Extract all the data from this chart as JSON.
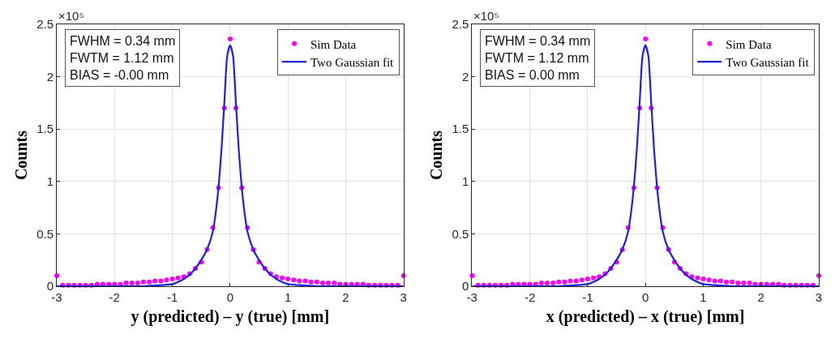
{
  "chart_data": [
    {
      "type": "scatter",
      "xlabel": "y (predicted) – y (true) [mm]",
      "ylabel": "Counts",
      "xlim": [
        -3,
        3
      ],
      "xticks": [
        -3,
        -2,
        -1,
        0,
        1,
        2,
        3
      ],
      "ylim": [
        0,
        2.5
      ],
      "yticks": [
        0,
        0.5,
        1,
        1.5,
        2,
        2.5
      ],
      "grid": true,
      "legend": "top right",
      "annotations": [
        "×10⁵",
        "FWHM = 0.34 mm",
        "FWTM = 1.12 mm",
        "BIAS = -0.00 mm"
      ],
      "series": [
        {
          "name": "Sim Data",
          "marker": "circle",
          "color": "#ff00ff",
          "x": [
            -3,
            -2.9,
            -2.8,
            -2.7,
            -2.6,
            -2.5,
            -2.4,
            -2.3,
            -2.2,
            -2.1,
            -2,
            -1.9,
            -1.8,
            -1.7,
            -1.6,
            -1.5,
            -1.4,
            -1.3,
            -1.2,
            -1.1,
            -1,
            -0.9,
            -0.8,
            -0.7,
            -0.6,
            -0.5,
            -0.4,
            -0.3,
            -0.2,
            -0.1,
            0,
            0.1,
            0.2,
            0.3,
            0.4,
            0.5,
            0.6,
            0.7,
            0.8,
            0.9,
            1,
            1.1,
            1.2,
            1.3,
            1.4,
            1.5,
            1.6,
            1.7,
            1.8,
            1.9,
            2,
            2.1,
            2.2,
            2.3,
            2.4,
            2.5,
            2.6,
            2.7,
            2.8,
            2.9,
            3
          ],
          "values": [
            0.1,
            0.01,
            0.01,
            0.01,
            0.01,
            0.01,
            0.01,
            0.02,
            0.02,
            0.02,
            0.02,
            0.02,
            0.03,
            0.03,
            0.03,
            0.04,
            0.04,
            0.05,
            0.05,
            0.06,
            0.07,
            0.08,
            0.09,
            0.12,
            0.17,
            0.23,
            0.35,
            0.56,
            0.94,
            1.7,
            2.36,
            1.7,
            0.94,
            0.56,
            0.35,
            0.23,
            0.17,
            0.12,
            0.09,
            0.08,
            0.07,
            0.06,
            0.05,
            0.05,
            0.04,
            0.04,
            0.03,
            0.03,
            0.03,
            0.02,
            0.02,
            0.02,
            0.02,
            0.02,
            0.01,
            0.01,
            0.01,
            0.01,
            0.01,
            0.01,
            0.1
          ]
        },
        {
          "name": "Two Gaussian fit",
          "type": "line",
          "line_style": "solid",
          "marker": "none",
          "color": "#1f1fe6",
          "x": [
            -3,
            -2,
            -1.5,
            -1.2,
            -1,
            -0.9,
            -0.8,
            -0.7,
            -0.6,
            -0.5,
            -0.4,
            -0.3,
            -0.25,
            -0.2,
            -0.15,
            -0.1,
            -0.05,
            0,
            0.05,
            0.1,
            0.15,
            0.2,
            0.25,
            0.3,
            0.4,
            0.5,
            0.6,
            0.7,
            0.8,
            0.9,
            1,
            1.2,
            1.5,
            2,
            3
          ],
          "values": [
            0,
            0,
            0.0,
            0.01,
            0.02,
            0.04,
            0.07,
            0.11,
            0.17,
            0.25,
            0.35,
            0.52,
            0.7,
            0.95,
            1.3,
            1.75,
            2.2,
            2.3,
            2.2,
            1.75,
            1.3,
            0.95,
            0.7,
            0.52,
            0.35,
            0.25,
            0.17,
            0.11,
            0.07,
            0.04,
            0.02,
            0.01,
            0.0,
            0,
            0
          ]
        }
      ]
    },
    {
      "type": "scatter",
      "xlabel": "x (predicted) – x (true) [mm]",
      "ylabel": "Counts",
      "xlim": [
        -3,
        3
      ],
      "xticks": [
        -3,
        -2,
        -1,
        0,
        1,
        2,
        3
      ],
      "ylim": [
        0,
        2.5
      ],
      "yticks": [
        0,
        0.5,
        1,
        1.5,
        2,
        2.5
      ],
      "grid": true,
      "legend": "top right",
      "annotations": [
        "×10⁵",
        "FWHM = 0.34 mm",
        "FWTM = 1.12 mm",
        "BIAS = 0.00 mm"
      ],
      "series": [
        {
          "name": "Sim Data",
          "marker": "circle",
          "color": "#ff00ff",
          "x": [
            -3,
            -2.9,
            -2.8,
            -2.7,
            -2.6,
            -2.5,
            -2.4,
            -2.3,
            -2.2,
            -2.1,
            -2,
            -1.9,
            -1.8,
            -1.7,
            -1.6,
            -1.5,
            -1.4,
            -1.3,
            -1.2,
            -1.1,
            -1,
            -0.9,
            -0.8,
            -0.7,
            -0.6,
            -0.5,
            -0.4,
            -0.3,
            -0.2,
            -0.1,
            0,
            0.1,
            0.2,
            0.3,
            0.4,
            0.5,
            0.6,
            0.7,
            0.8,
            0.9,
            1,
            1.1,
            1.2,
            1.3,
            1.4,
            1.5,
            1.6,
            1.7,
            1.8,
            1.9,
            2,
            2.1,
            2.2,
            2.3,
            2.4,
            2.5,
            2.6,
            2.7,
            2.8,
            2.9,
            3
          ],
          "values": [
            0.1,
            0.01,
            0.01,
            0.01,
            0.01,
            0.01,
            0.01,
            0.02,
            0.02,
            0.02,
            0.02,
            0.02,
            0.03,
            0.03,
            0.03,
            0.04,
            0.04,
            0.05,
            0.05,
            0.06,
            0.07,
            0.08,
            0.09,
            0.12,
            0.17,
            0.23,
            0.35,
            0.56,
            0.94,
            1.7,
            2.36,
            1.7,
            0.94,
            0.56,
            0.35,
            0.23,
            0.17,
            0.12,
            0.09,
            0.08,
            0.07,
            0.06,
            0.05,
            0.05,
            0.04,
            0.04,
            0.03,
            0.03,
            0.03,
            0.02,
            0.02,
            0.02,
            0.02,
            0.02,
            0.01,
            0.01,
            0.01,
            0.01,
            0.01,
            0.01,
            0.1
          ]
        },
        {
          "name": "Two Gaussian fit",
          "type": "line",
          "line_style": "solid",
          "marker": "none",
          "color": "#1f1fe6",
          "x": [
            -3,
            -2,
            -1.5,
            -1.2,
            -1,
            -0.9,
            -0.8,
            -0.7,
            -0.6,
            -0.5,
            -0.4,
            -0.3,
            -0.25,
            -0.2,
            -0.15,
            -0.1,
            -0.05,
            0,
            0.05,
            0.1,
            0.15,
            0.2,
            0.25,
            0.3,
            0.4,
            0.5,
            0.6,
            0.7,
            0.8,
            0.9,
            1,
            1.2,
            1.5,
            2,
            3
          ],
          "values": [
            0,
            0,
            0.0,
            0.01,
            0.02,
            0.04,
            0.07,
            0.11,
            0.17,
            0.25,
            0.35,
            0.52,
            0.7,
            0.95,
            1.3,
            1.75,
            2.2,
            2.3,
            2.2,
            1.75,
            1.3,
            0.95,
            0.7,
            0.52,
            0.35,
            0.25,
            0.17,
            0.11,
            0.07,
            0.04,
            0.02,
            0.01,
            0.0,
            0,
            0
          ]
        }
      ]
    }
  ]
}
